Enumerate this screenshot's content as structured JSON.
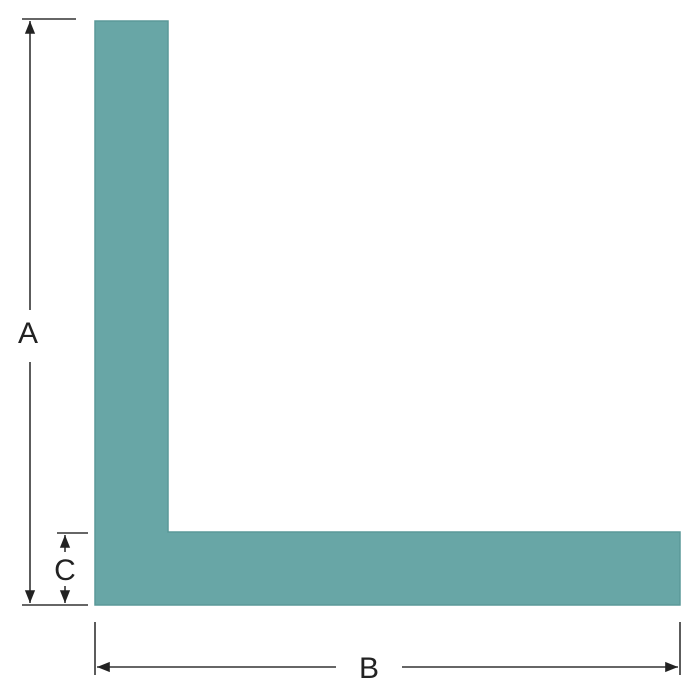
{
  "diagram": {
    "shape_color": "#68a6a6",
    "shape_edge_color": "#5a9898",
    "line_color": "#333333",
    "labels": {
      "height": "A",
      "width": "B",
      "thickness": "C"
    }
  }
}
